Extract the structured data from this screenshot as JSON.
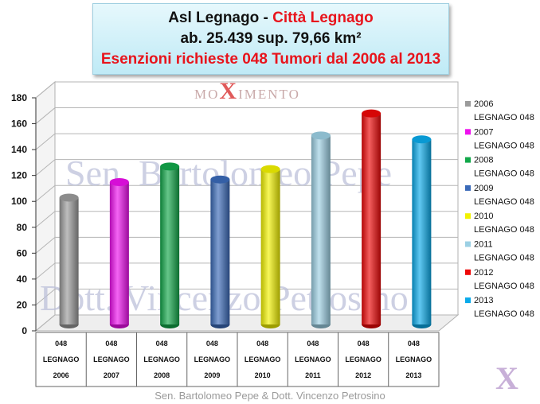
{
  "title": {
    "line1_black": "Asl Legnago - ",
    "line1_red": "Città Legnago",
    "line2": "ab. 25.439 sup. 79,66 km²",
    "line3": "Esenzioni richieste 048 Tumori dal 2006 al 2013"
  },
  "watermarks": {
    "logo_pre": "MO",
    "logo_x": "X",
    "logo_post": "IMENTO",
    "line1": "Sen. Bartolomeo Pepe",
    "line2": "Dott. Vincenzo Petrosino",
    "corner": "X"
  },
  "footer": "Sen. Bartolomeo Pepe &  Dott. Vincenzo Petrosino",
  "chart_data": {
    "type": "bar",
    "categories": [
      [
        "048",
        "LEGNAGO",
        "2006"
      ],
      [
        "048",
        "LEGNAGO",
        "2007"
      ],
      [
        "048",
        "LEGNAGO",
        "2008"
      ],
      [
        "048",
        "LEGNAGO",
        "2009"
      ],
      [
        "048",
        "LEGNAGO",
        "2010"
      ],
      [
        "048",
        "LEGNAGO",
        "2011"
      ],
      [
        "048",
        "LEGNAGO",
        "2012"
      ],
      [
        "048",
        "LEGNAGO",
        "2013"
      ]
    ],
    "values": [
      98,
      110,
      122,
      112,
      120,
      146,
      163,
      143
    ],
    "colors": [
      "#9b9b9b",
      "#ee10ee",
      "#12a84a",
      "#3a6ab8",
      "#f2f200",
      "#9cd0e4",
      "#ee0808",
      "#0aaaea"
    ],
    "legend": [
      {
        "year": "2006",
        "label": "LEGNAGO 048"
      },
      {
        "year": "2007",
        "label": "LEGNAGO 048"
      },
      {
        "year": "2008",
        "label": "LEGNAGO 048"
      },
      {
        "year": "2009",
        "label": "LEGNAGO 048"
      },
      {
        "year": "2010",
        "label": "LEGNAGO 048"
      },
      {
        "year": "2011",
        "label": "LEGNAGO 048"
      },
      {
        "year": "2012",
        "label": "LEGNAGO 048"
      },
      {
        "year": "2013",
        "label": "LEGNAGO 048"
      }
    ],
    "yticks": [
      0,
      20,
      40,
      60,
      80,
      100,
      120,
      140,
      160,
      180
    ],
    "ylim": [
      0,
      180
    ],
    "grid": true,
    "legend_position": "right",
    "xlabel": "",
    "ylabel": ""
  }
}
